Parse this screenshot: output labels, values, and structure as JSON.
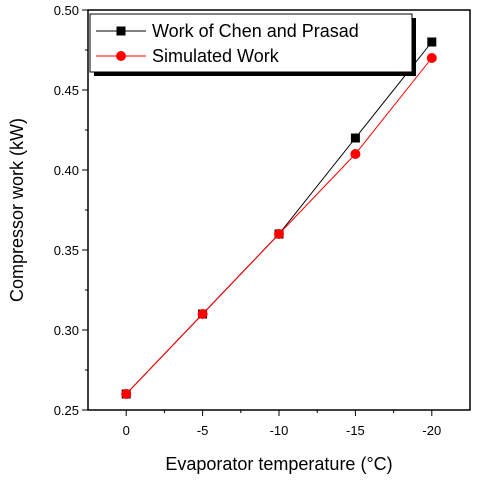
{
  "chart_data": {
    "type": "line",
    "xlabel": "Evaporator temperature (°C)",
    "ylabel": "Compressor work (kW)",
    "x": [
      0,
      -5,
      -10,
      -15,
      -20
    ],
    "x_tick_labels": [
      "0",
      "-5",
      "-10",
      "-15",
      "-20"
    ],
    "x_axis_direction": "reversed",
    "xlim": [
      2.5,
      -22.5
    ],
    "ylim": [
      0.25,
      0.5
    ],
    "y_tick_labels": [
      "0.25",
      "0.30",
      "0.35",
      "0.40",
      "0.45",
      "0.50"
    ],
    "grid": false,
    "legend_position": "top-left",
    "series": [
      {
        "name": "Work of Chen and Prasad",
        "marker": "square",
        "color": "#000000",
        "values": [
          0.26,
          0.31,
          0.36,
          0.42,
          0.48
        ]
      },
      {
        "name": "Simulated Work",
        "marker": "circle",
        "color": "#ff0000",
        "values": [
          0.26,
          0.31,
          0.36,
          0.41,
          0.47
        ]
      }
    ]
  }
}
